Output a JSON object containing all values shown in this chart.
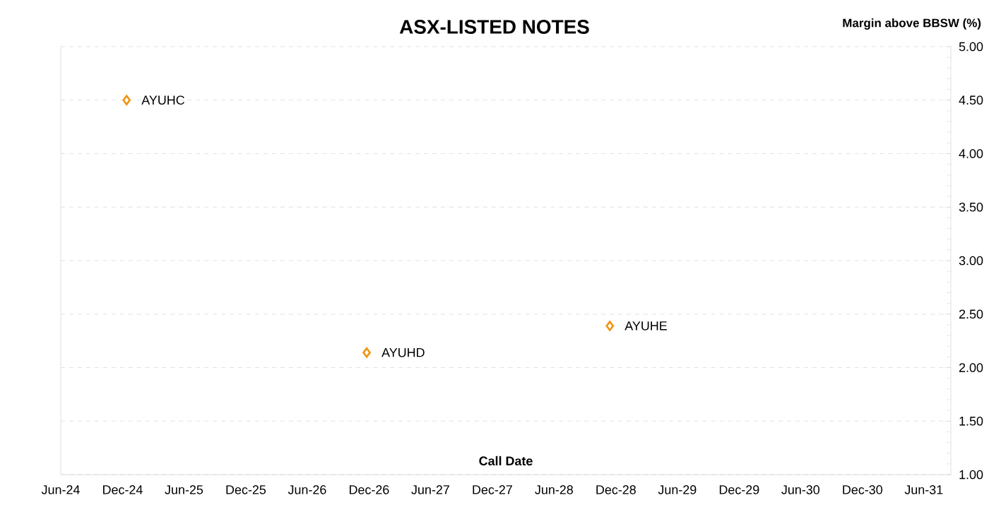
{
  "chart_data": {
    "type": "scatter",
    "title": "ASX-LISTED NOTES",
    "xlabel": "Call Date",
    "ylabel": "Margin above BBSW (%)",
    "x": [
      "2024-12-13",
      "2026-11-24",
      "2028-11-13"
    ],
    "series": [
      {
        "color": "#f0920e",
        "values": [
          4.5,
          2.14,
          2.39
        ]
      }
    ],
    "annotations": [
      {
        "text": "AYUHC",
        "x": "2024-12-13",
        "y": 4.5
      },
      {
        "text": "AYUHD",
        "x": "2026-11-24",
        "y": 2.14
      },
      {
        "text": "AYUHE",
        "x": "2028-11-13",
        "y": 2.39
      }
    ],
    "xlim": [
      "2024-06-01",
      "2031-08-20"
    ],
    "xticks": [
      {
        "value": "2024-06-01",
        "label": "Jun-24"
      },
      {
        "value": "2024-12-01",
        "label": "Dec-24"
      },
      {
        "value": "2025-06-01",
        "label": "Jun-25"
      },
      {
        "value": "2025-12-01",
        "label": "Dec-25"
      },
      {
        "value": "2026-06-01",
        "label": "Jun-26"
      },
      {
        "value": "2026-12-01",
        "label": "Dec-26"
      },
      {
        "value": "2027-06-01",
        "label": "Jun-27"
      },
      {
        "value": "2027-12-01",
        "label": "Dec-27"
      },
      {
        "value": "2028-06-01",
        "label": "Jun-28"
      },
      {
        "value": "2028-12-01",
        "label": "Dec-28"
      },
      {
        "value": "2029-06-01",
        "label": "Jun-29"
      },
      {
        "value": "2029-12-01",
        "label": "Dec-29"
      },
      {
        "value": "2030-06-01",
        "label": "Jun-30"
      },
      {
        "value": "2030-12-01",
        "label": "Dec-30"
      },
      {
        "value": "2031-06-01",
        "label": "Jun-31"
      }
    ],
    "ylim": [
      1,
      5
    ],
    "yticks": [
      {
        "value": 1,
        "label": "1.00"
      },
      {
        "value": 1.5,
        "label": "1.50"
      },
      {
        "value": 2,
        "label": "2.00"
      },
      {
        "value": 2.5,
        "label": "2.50"
      },
      {
        "value": 3,
        "label": "3.00"
      },
      {
        "value": 3.5,
        "label": "3.50"
      },
      {
        "value": 4,
        "label": "4.00"
      },
      {
        "value": 4.5,
        "label": "4.50"
      },
      {
        "value": 5,
        "label": "5.00"
      }
    ],
    "grid": "y",
    "marker": "diamond"
  }
}
